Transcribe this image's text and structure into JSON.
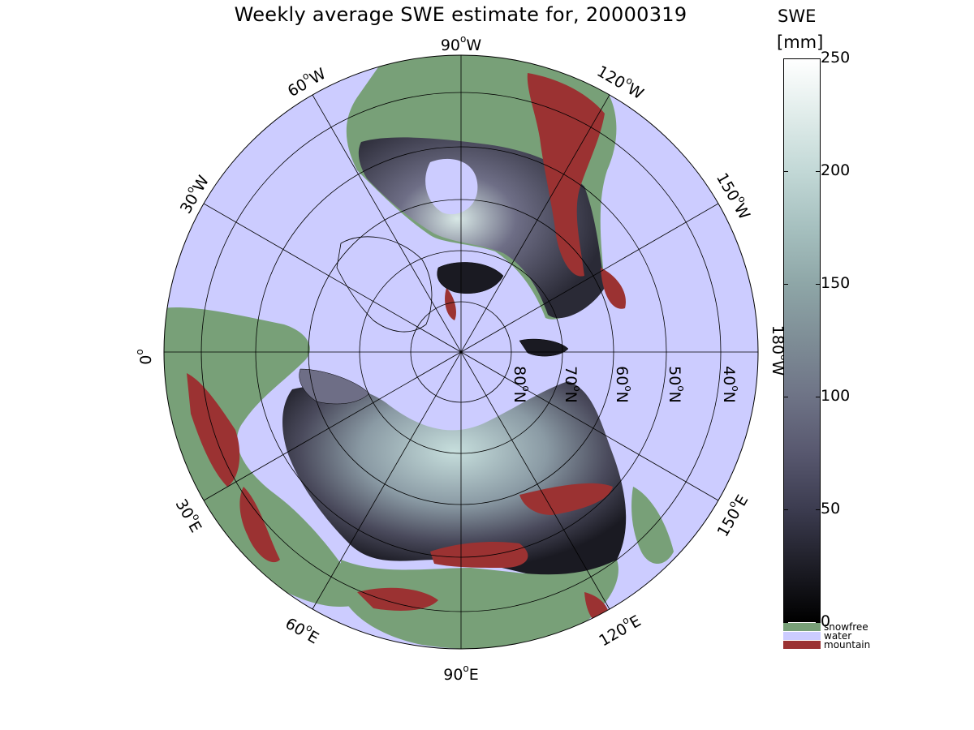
{
  "title": "Weekly average SWE estimate for, 20000319",
  "map": {
    "longitude_labels": [
      {
        "deg": "90",
        "dir": "W"
      },
      {
        "deg": "60",
        "dir": "W"
      },
      {
        "deg": "30",
        "dir": "W"
      },
      {
        "deg": "0",
        "dir": ""
      },
      {
        "deg": "30",
        "dir": "E"
      },
      {
        "deg": "60",
        "dir": "E"
      },
      {
        "deg": "90",
        "dir": "E"
      },
      {
        "deg": "120",
        "dir": "E"
      },
      {
        "deg": "150",
        "dir": "E"
      },
      {
        "deg": "180",
        "dir": "W"
      },
      {
        "deg": "150",
        "dir": "W"
      },
      {
        "deg": "120",
        "dir": "W"
      }
    ],
    "latitude_labels": [
      "80",
      "70",
      "60",
      "50",
      "40"
    ],
    "lat_suffix": "N",
    "colors": {
      "water": "#ccccff",
      "snowfree": "#78a078",
      "mountain": "#9b3232",
      "snow_dark": "#1a1a22",
      "snow_mid": "#6e6e86",
      "snow_light": "#c6dedc"
    }
  },
  "colorbar": {
    "title_line1": "SWE",
    "title_line2": "[mm]",
    "ticks": [
      "250",
      "200",
      "150",
      "100",
      "50",
      "0"
    ],
    "range": [
      0,
      250
    ]
  },
  "legend": [
    {
      "label": "snowfree",
      "color": "#78a078"
    },
    {
      "label": "water",
      "color": "#ccccff"
    },
    {
      "label": "mountain",
      "color": "#9b3232"
    }
  ]
}
